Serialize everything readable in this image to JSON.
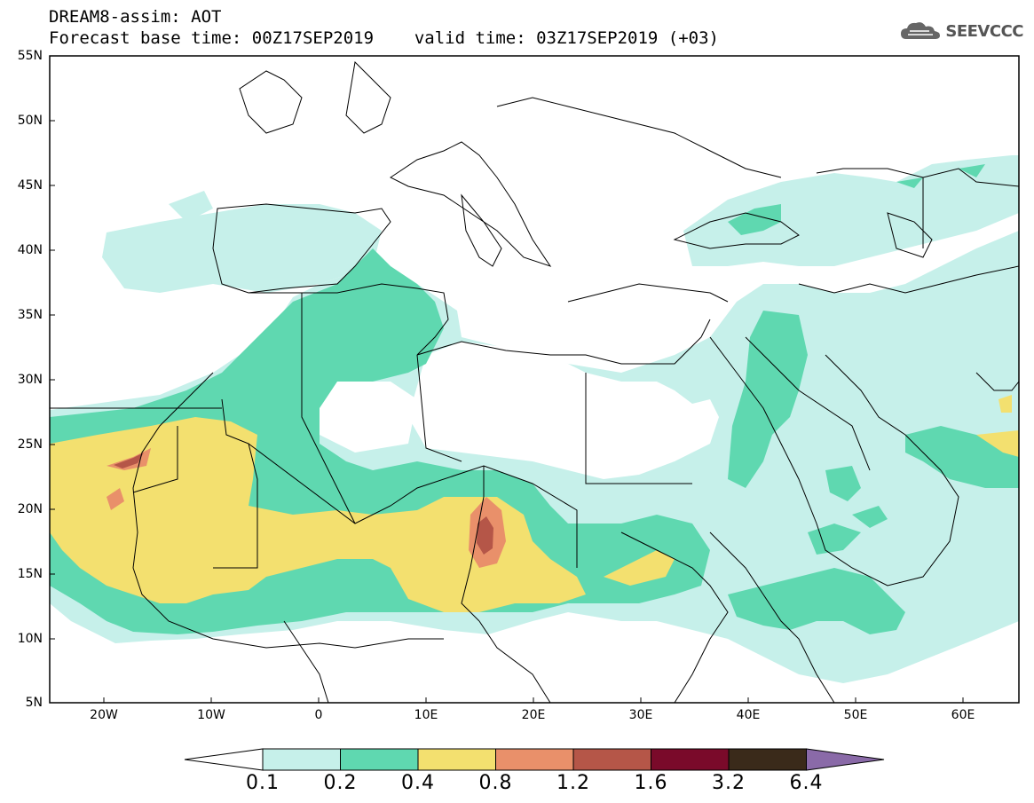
{
  "header": {
    "title": "DREAM8-assim: AOT",
    "base_time": "Forecast base time: 00Z17SEP2019",
    "valid_time": "valid time: 03Z17SEP2019 (+03)"
  },
  "logo": {
    "text": "SEEVCCC",
    "icon": "cloud-icon"
  },
  "map": {
    "lat_labels": [
      "55N",
      "50N",
      "45N",
      "40N",
      "35N",
      "30N",
      "25N",
      "20N",
      "15N",
      "10N",
      "5N"
    ],
    "lon_labels": [
      "20W",
      "10W",
      "0",
      "10E",
      "20E",
      "30E",
      "40E",
      "50E",
      "60E"
    ],
    "lat_range": [
      5,
      55
    ],
    "lon_range": [
      -25,
      65
    ]
  },
  "colorbar": {
    "labels": [
      "0.1",
      "0.2",
      "0.4",
      "0.8",
      "1.2",
      "1.6",
      "3.2",
      "6.4"
    ],
    "colors": [
      "#c6f0ea",
      "#5fd8b0",
      "#f3e06f",
      "#e9906a",
      "#b55648",
      "#7a0a2a",
      "#3a2a1a",
      "#8a6aa8"
    ]
  }
}
